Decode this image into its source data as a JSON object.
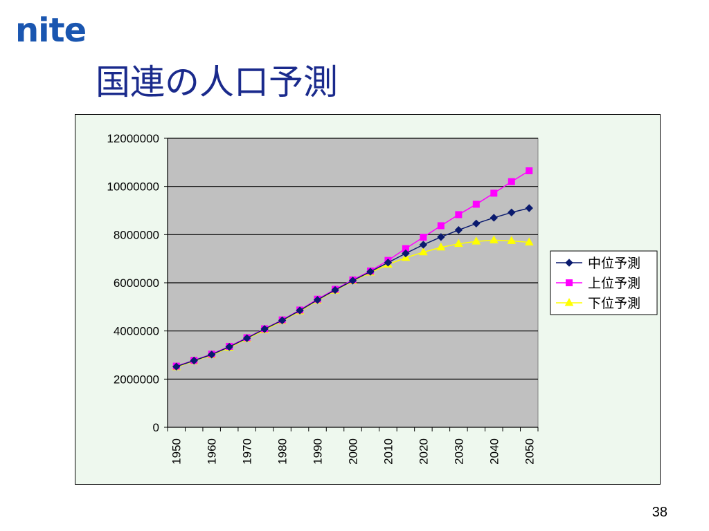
{
  "logo_text": "nite",
  "slide_title": "国連の人口予測",
  "page_number": "38",
  "chart_data": {
    "type": "line",
    "title": "",
    "xlabel": "",
    "ylabel": "",
    "ylim": [
      0,
      12000000
    ],
    "yticks": [
      "0",
      "2000000",
      "4000000",
      "6000000",
      "8000000",
      "10000000",
      "12000000"
    ],
    "xtick_labels": [
      "1950",
      "1960",
      "1970",
      "1980",
      "1990",
      "2000",
      "2010",
      "2020",
      "2030",
      "2040",
      "2050"
    ],
    "x": [
      1950,
      1955,
      1960,
      1965,
      1970,
      1975,
      1980,
      1985,
      1990,
      1995,
      2000,
      2005,
      2010,
      2015,
      2020,
      2025,
      2030,
      2035,
      2040,
      2045,
      2050
    ],
    "grid": true,
    "plot_background": "#c0c0c0",
    "legend_position": "right",
    "series": [
      {
        "name": "中位予測",
        "color": "#0a1a6e",
        "marker": "diamond",
        "values": [
          2520000,
          2770000,
          3020000,
          3340000,
          3700000,
          4080000,
          4440000,
          4850000,
          5290000,
          5700000,
          6090000,
          6460000,
          6840000,
          7220000,
          7580000,
          7900000,
          8190000,
          8460000,
          8700000,
          8920000,
          9100000
        ]
      },
      {
        "name": "上位予測",
        "color": "#ff00ff",
        "marker": "square",
        "values": [
          2540000,
          2780000,
          3040000,
          3360000,
          3720000,
          4090000,
          4460000,
          4870000,
          5320000,
          5730000,
          6120000,
          6490000,
          6930000,
          7420000,
          7890000,
          8370000,
          8830000,
          9260000,
          9720000,
          10200000,
          10650000
        ]
      },
      {
        "name": "下位予測",
        "color": "#ffff00",
        "marker": "triangle",
        "values": [
          2500000,
          2750000,
          3000000,
          3310000,
          3680000,
          4040000,
          4420000,
          4820000,
          5270000,
          5680000,
          6070000,
          6430000,
          6760000,
          7040000,
          7270000,
          7470000,
          7620000,
          7720000,
          7770000,
          7740000,
          7680000
        ]
      }
    ]
  }
}
